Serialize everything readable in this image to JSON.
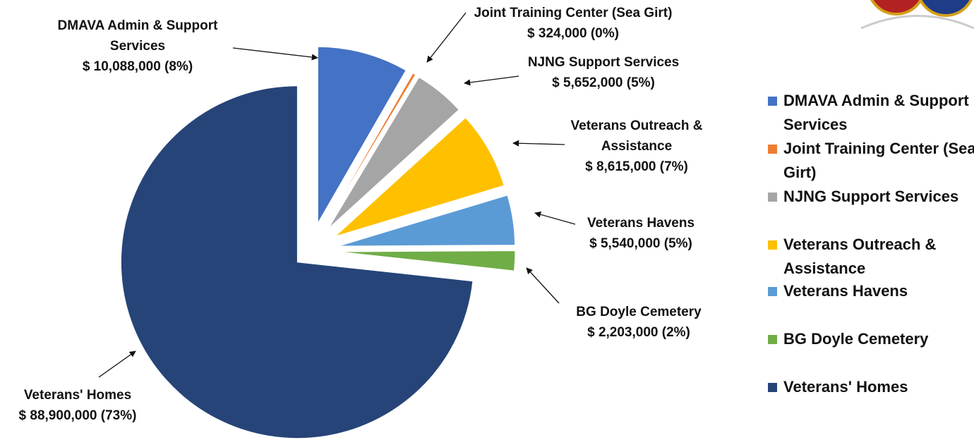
{
  "chart_data": {
    "type": "pie",
    "categories": [
      "DMAVA Admin & Support Services",
      "Joint Training Center (Sea Girt)",
      "NJNG Support Services",
      "Veterans Outreach & Assistance",
      "Veterans Havens",
      "BG Doyle Cemetery",
      "Veterans' Homes"
    ],
    "values": [
      10088000,
      324000,
      5652000,
      8615000,
      5540000,
      2203000,
      88900000
    ],
    "value_labels": [
      "$ 10,088,000 (8%)",
      "$ 324,000 (0%)",
      "$ 5,652,000 (5%)",
      "$ 8,615,000 (7%)",
      "$ 5,540,000 (5%)",
      "$ 2,203,000 (2%)",
      "$ 88,900,000 (73%)"
    ],
    "colors": [
      "#4472c4",
      "#ed7d31",
      "#a5a5a5",
      "#ffc000",
      "#5b9bd5",
      "#70ad47",
      "#264478"
    ],
    "legend": "right"
  }
}
